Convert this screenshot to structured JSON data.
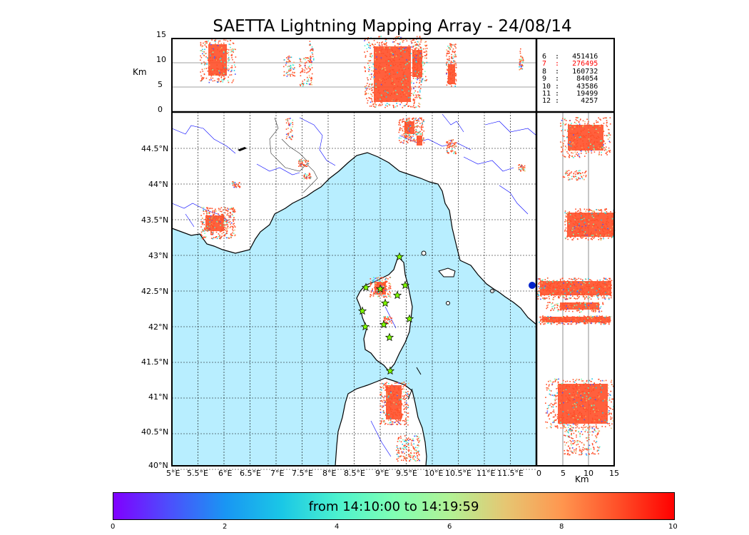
{
  "title": "SAETTA Lightning Mapping Array - 24/08/14",
  "top_panel": {
    "ylabel": "Km",
    "y_ticks": [
      "15",
      "10",
      "5",
      "0"
    ],
    "grid_lines": [
      10,
      5
    ]
  },
  "counts": [
    {
      "text": "6  :   451416",
      "color": "#000000"
    },
    {
      "text": "7  :   276495",
      "color": "#ff0000"
    },
    {
      "text": "8  :   160732",
      "color": "#000000"
    },
    {
      "text": "9  :    84054",
      "color": "#000000"
    },
    {
      "text": "10 :    43586",
      "color": "#000000"
    },
    {
      "text": "11 :    19499",
      "color": "#000000"
    },
    {
      "text": "12 :     4257",
      "color": "#000000"
    }
  ],
  "map": {
    "lon_ticks": [
      "5°E",
      "5.5°E",
      "6°E",
      "6.5°E",
      "7°E",
      "7.5°E",
      "8°E",
      "8.5°E",
      "9°E",
      "9.5°E",
      "10°E",
      "10.5°E",
      "11°E",
      "11.5°E"
    ],
    "lat_ticks": [
      "44.5°N",
      "44°N",
      "43.5°N",
      "43°N",
      "42.5°N",
      "42°N",
      "41.5°N",
      "41°N",
      "40.5°N",
      "40°N"
    ],
    "sea_color": "#b8eeff",
    "coast_color": "#000000",
    "river_color": "#0000ff",
    "station_marker": "star",
    "station_color": "#7fff00"
  },
  "side_panel": {
    "x_ticks": [
      "0",
      "5",
      "10",
      "15"
    ],
    "xlabel": "Km"
  },
  "colorbar": {
    "label": "from 14:10:00 to 14:19:59",
    "ticks": [
      "0",
      "2",
      "4",
      "6",
      "8",
      "10"
    ],
    "colormap": "rainbow",
    "range": [
      0,
      10
    ]
  }
}
